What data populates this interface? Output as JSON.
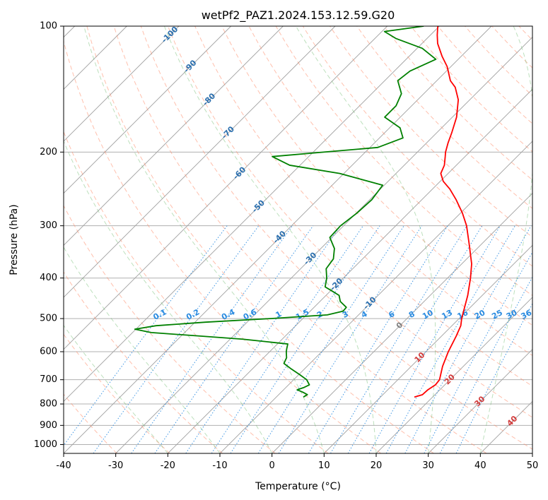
{
  "chart_data": {
    "type": "line",
    "title": "wetPf2_PAZ1.2024.153.12.59.G20",
    "xlabel": "Temperature (°C)",
    "ylabel": "Pressure (hPa)",
    "xlim": [
      -40,
      50
    ],
    "ylim": [
      1050,
      100
    ],
    "y_scale": "log",
    "x_ticks": [
      "-40",
      "-30",
      "-20",
      "-10",
      "0",
      "10",
      "20",
      "30",
      "40",
      "50"
    ],
    "y_ticks": [
      "100",
      "200",
      "300",
      "400",
      "500",
      "600",
      "700",
      "800",
      "900",
      "1000"
    ],
    "grid": true,
    "series": [
      {
        "color": "#ff0000",
        "points": [
          [
            770,
            16.5
          ],
          [
            760,
            17.6
          ],
          [
            740,
            17.7
          ],
          [
            720,
            18.2
          ],
          [
            700,
            18.0
          ],
          [
            650,
            16.0
          ],
          [
            600,
            14.3
          ],
          [
            550,
            12.8
          ],
          [
            520,
            11.7
          ],
          [
            500,
            10.5
          ],
          [
            470,
            8.9
          ],
          [
            440,
            7.2
          ],
          [
            400,
            4.4
          ],
          [
            370,
            1.9
          ],
          [
            330,
            -2.6
          ],
          [
            300,
            -6.4
          ],
          [
            280,
            -9.6
          ],
          [
            260,
            -13.4
          ],
          [
            245,
            -16.7
          ],
          [
            235,
            -19.4
          ],
          [
            225,
            -21.4
          ],
          [
            215,
            -22.3
          ],
          [
            205,
            -23.8
          ],
          [
            200,
            -24.6
          ],
          [
            190,
            -25.9
          ],
          [
            180,
            -27.1
          ],
          [
            165,
            -29.2
          ],
          [
            150,
            -32.2
          ],
          [
            140,
            -35.2
          ],
          [
            135,
            -37.4
          ],
          [
            125,
            -40.7
          ],
          [
            118,
            -43.7
          ],
          [
            110,
            -47.0
          ],
          [
            105,
            -48.7
          ],
          [
            100,
            -50.3
          ]
        ]
      },
      {
        "color": "#008000",
        "points": [
          [
            770,
            -4.8
          ],
          [
            760,
            -4.5
          ],
          [
            750,
            -5.8
          ],
          [
            740,
            -7.4
          ],
          [
            730,
            -6.5
          ],
          [
            720,
            -6.0
          ],
          [
            700,
            -7.5
          ],
          [
            680,
            -9.9
          ],
          [
            660,
            -12.5
          ],
          [
            640,
            -15.0
          ],
          [
            620,
            -15.6
          ],
          [
            610,
            -16.2
          ],
          [
            600,
            -16.8
          ],
          [
            590,
            -17.3
          ],
          [
            575,
            -18.0
          ],
          [
            560,
            -27.6
          ],
          [
            550,
            -36.8
          ],
          [
            540,
            -46.4
          ],
          [
            530,
            -50.2
          ],
          [
            520,
            -46.8
          ],
          [
            510,
            -38.0
          ],
          [
            500,
            -26.2
          ],
          [
            490,
            -16.0
          ],
          [
            480,
            -13.7
          ],
          [
            470,
            -13.8
          ],
          [
            455,
            -16.1
          ],
          [
            440,
            -17.5
          ],
          [
            430,
            -19.6
          ],
          [
            420,
            -21.8
          ],
          [
            400,
            -23.2
          ],
          [
            380,
            -25.1
          ],
          [
            360,
            -25.6
          ],
          [
            340,
            -27.4
          ],
          [
            320,
            -30.4
          ],
          [
            300,
            -30.6
          ],
          [
            280,
            -29.9
          ],
          [
            260,
            -29.6
          ],
          [
            240,
            -30.3
          ],
          [
            225,
            -40.8
          ],
          [
            215,
            -52.0
          ],
          [
            205,
            -57.0
          ],
          [
            200,
            -48.0
          ],
          [
            195,
            -38.5
          ],
          [
            185,
            -35.5
          ],
          [
            175,
            -38.0
          ],
          [
            165,
            -43.0
          ],
          [
            155,
            -43.0
          ],
          [
            145,
            -44.3
          ],
          [
            135,
            -47.5
          ],
          [
            128,
            -47.0
          ],
          [
            120,
            -44.3
          ],
          [
            113,
            -49.0
          ],
          [
            107,
            -56.0
          ],
          [
            103,
            -59.5
          ],
          [
            100,
            -53.0
          ]
        ]
      }
    ],
    "dry_adiabat_labels": [
      "-100",
      "-90",
      "-80",
      "-70",
      "-60",
      "-50",
      "-40",
      "-30",
      "-20",
      "-10",
      "0"
    ],
    "moist_adiabat_labels": [
      "10",
      "20",
      "30",
      "40"
    ],
    "mixing_ratio_labels": [
      "0.1",
      "0.2",
      "0.4",
      "0.6",
      "1",
      "1.5",
      "2",
      "3",
      "4",
      "6",
      "8",
      "10",
      "13",
      "16",
      "20",
      "25",
      "30",
      "36"
    ]
  },
  "colors": {
    "temperature": "#ff0000",
    "dewpoint": "#008000",
    "isotherm": "#a0a0a0",
    "dry_adiabat": "#ff8c69",
    "moist_adiabat": "#6cba6c",
    "mixing_ratio": "#2a8be0"
  }
}
